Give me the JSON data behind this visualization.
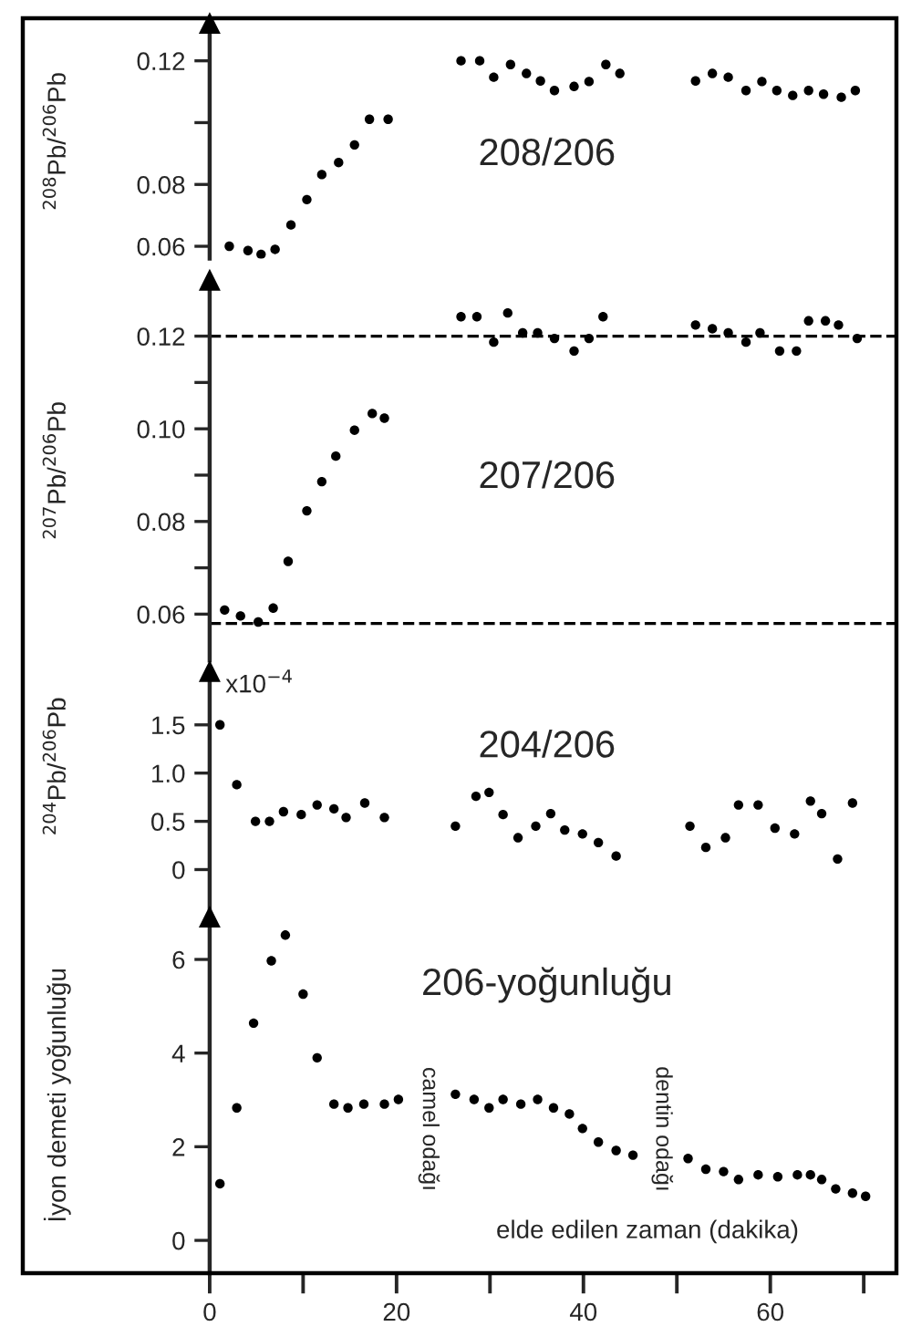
{
  "chart_data": [
    {
      "type": "scatter",
      "ylabel": "$^{208}$Pb/$^{206}$Pb",
      "annotations": [
        "208/206"
      ],
      "marker": "circle",
      "grid": false,
      "tick_labels": "y",
      "xlim": [
        -20,
        73.5
      ],
      "ylim": [
        0.056,
        0.132
      ],
      "yticks": [
        0.06,
        0.08,
        {
          "value": 0.1,
          "label": null
        },
        0.12
      ],
      "x": [
        2.1,
        4.1,
        5.5,
        7.0,
        8.7,
        10.4,
        12.0,
        13.8,
        15.5,
        17.1,
        19.1,
        26.9,
        28.9,
        30.4,
        32.2,
        33.9,
        35.4,
        36.9,
        39.0,
        40.6,
        42.4,
        43.9,
        52.0,
        53.8,
        55.5,
        57.4,
        59.1,
        60.7,
        62.4,
        64.1,
        65.7,
        67.6,
        69.1
      ],
      "series": [
        {
          "color": "#000000",
          "values": [
            0.06,
            0.0586,
            0.0574,
            0.059,
            0.0669,
            0.0751,
            0.0832,
            0.0871,
            0.0928,
            0.1011,
            0.1011,
            0.12,
            0.12,
            0.1147,
            0.1188,
            0.1159,
            0.1135,
            0.1104,
            0.1117,
            0.1133,
            0.1188,
            0.1159,
            0.1135,
            0.1159,
            0.1147,
            0.1104,
            0.1133,
            0.1104,
            0.1088,
            0.1104,
            0.1092,
            0.1082,
            0.1104
          ]
        }
      ]
    },
    {
      "type": "scatter",
      "ylabel": "$^{207}$Pb/$^{206}$Pb",
      "annotations": [
        "207/206"
      ],
      "marker": "circle",
      "grid": false,
      "tick_labels": "y",
      "xlim": [
        -20,
        73.5
      ],
      "ylim": [
        0.05,
        0.132
      ],
      "yticks": [
        0.06,
        {
          "value": 0.07,
          "label": null
        },
        0.08,
        {
          "value": 0.09,
          "label": null
        },
        "0.10",
        {
          "value": 0.11,
          "label": null
        },
        0.12
      ],
      "ref_lines": [
        {
          "axis": "y",
          "value": 0.12,
          "color": "#000000",
          "line_style": "dashed"
        },
        {
          "axis": "y",
          "value": 0.058,
          "color": "#000000",
          "line_style": "dashed"
        }
      ],
      "x": [
        1.6,
        3.3,
        5.2,
        6.8,
        8.4,
        10.4,
        12.0,
        13.5,
        15.5,
        17.4,
        18.7,
        26.9,
        28.6,
        30.4,
        31.9,
        33.5,
        35.1,
        36.9,
        39.0,
        40.6,
        42.1,
        52.0,
        53.8,
        55.5,
        57.4,
        58.9,
        61.0,
        62.8,
        64.1,
        65.9,
        67.3,
        69.3
      ],
      "series": [
        {
          "color": "#000000",
          "values": [
            0.0609,
            0.0596,
            0.0583,
            0.0613,
            0.0714,
            0.0823,
            0.0886,
            0.0941,
            0.0997,
            0.1033,
            0.1023,
            0.1242,
            0.1242,
            0.1187,
            0.125,
            0.1207,
            0.1207,
            0.1195,
            0.1168,
            0.1195,
            0.1242,
            0.1224,
            0.1216,
            0.1207,
            0.1187,
            0.1207,
            0.1168,
            0.1168,
            0.1233,
            0.1233,
            0.1224,
            0.1195
          ]
        }
      ]
    },
    {
      "type": "scatter",
      "ylabel": "$^{204}$Pb/$^{206}$Pb",
      "annotations": [
        "204/206",
        "x10$^{−4}$"
      ],
      "marker": "circle",
      "grid": false,
      "tick_labels": "y",
      "xlim": [
        -20,
        73.5
      ],
      "ylim": [
        -0.4,
        2.05
      ],
      "yticks": [
        0,
        0.5,
        {
          "value": 1,
          "label": "1.0"
        },
        1.5
      ],
      "x": [
        1.1,
        2.9,
        4.9,
        6.4,
        7.9,
        9.8,
        11.5,
        13.3,
        14.6,
        16.6,
        18.7,
        26.3,
        28.5,
        29.9,
        31.4,
        33.0,
        34.9,
        36.5,
        38.0,
        39.9,
        41.6,
        43.5,
        51.4,
        53.1,
        55.2,
        56.6,
        58.7,
        60.5,
        62.6,
        64.3,
        65.5,
        67.2,
        68.8
      ],
      "series": [
        {
          "color": "#000000",
          "values": [
            1.5,
            0.88,
            0.5,
            0.5,
            0.6,
            0.57,
            0.67,
            0.63,
            0.54,
            0.69,
            0.54,
            0.45,
            0.76,
            0.8,
            0.57,
            0.33,
            0.45,
            0.58,
            0.41,
            0.37,
            0.28,
            0.14,
            0.45,
            0.23,
            0.33,
            0.67,
            0.67,
            0.43,
            0.37,
            0.71,
            0.58,
            0.11,
            0.69
          ]
        }
      ]
    },
    {
      "type": "scatter",
      "ylabel": "İyon demeti yoğunluğu",
      "xlabel": "elde edilen zaman (dakika)",
      "annotations": [
        "206-yoğunluğu",
        "camel odağı",
        "dentin odağı"
      ],
      "marker": "circle",
      "grid": false,
      "xlim": [
        -20,
        73.5
      ],
      "xticks": [
        0,
        {
          "value": 10,
          "label": null
        },
        20,
        {
          "value": 30,
          "label": null
        },
        40,
        {
          "value": 50,
          "label": null
        },
        60,
        {
          "value": 70,
          "label": null
        }
      ],
      "ylim": [
        -0.7,
        6.9
      ],
      "yticks": [
        0,
        2,
        4,
        6
      ],
      "x": [
        1.1,
        2.9,
        4.7,
        6.6,
        8.1,
        10.0,
        11.5,
        13.3,
        14.8,
        16.5,
        18.7,
        20.2,
        26.3,
        28.3,
        29.9,
        31.4,
        33.3,
        35.1,
        36.8,
        38.5,
        39.9,
        41.6,
        43.5,
        45.3,
        51.2,
        53.1,
        55.0,
        56.6,
        58.7,
        60.8,
        62.9,
        64.3,
        65.5,
        67.0,
        68.8,
        70.2
      ],
      "series": [
        {
          "color": "#000000",
          "values": [
            1.21,
            2.83,
            4.64,
            5.97,
            6.52,
            5.26,
            3.9,
            2.91,
            2.83,
            2.91,
            2.91,
            3.01,
            3.12,
            3.01,
            2.83,
            3.01,
            2.91,
            3.01,
            2.83,
            2.7,
            2.39,
            2.1,
            1.92,
            1.82,
            1.75,
            1.52,
            1.47,
            1.3,
            1.4,
            1.36,
            1.4,
            1.4,
            1.3,
            1.1,
            1.01,
            0.94
          ]
        }
      ]
    }
  ]
}
